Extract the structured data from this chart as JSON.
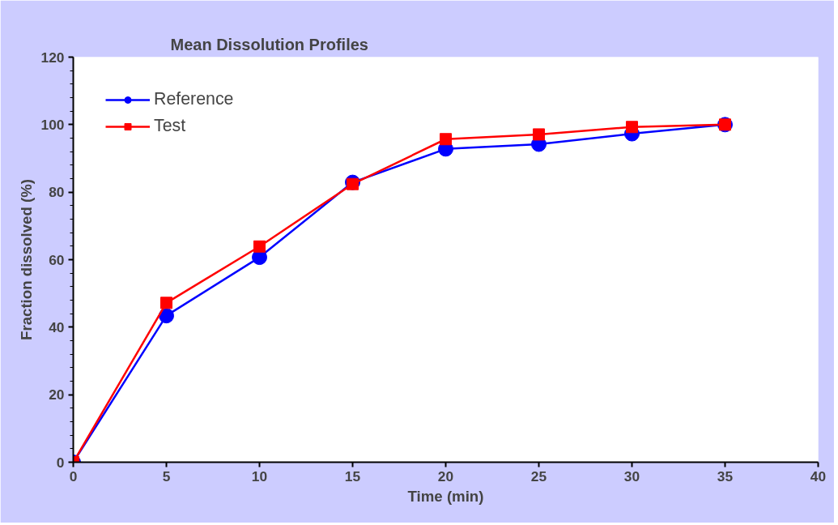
{
  "chart_data": {
    "type": "line",
    "title": "Mean Dissolution Profiles",
    "xlabel": "Time (min)",
    "ylabel": "Fraction dissolved (%)",
    "x": [
      0,
      5,
      10,
      15,
      20,
      25,
      30,
      35
    ],
    "series": [
      {
        "name": "Reference",
        "color": "#0000ff",
        "marker": "circle",
        "values": [
          0,
          43.4,
          60.7,
          82.9,
          92.8,
          94.2,
          97.3,
          100
        ]
      },
      {
        "name": "Test",
        "color": "#ff0000",
        "marker": "square",
        "values": [
          0,
          47.2,
          63.9,
          82.4,
          95.7,
          97.1,
          99.3,
          100
        ]
      }
    ],
    "xlim": [
      0,
      40
    ],
    "xticks": [
      0,
      5,
      10,
      15,
      20,
      25,
      30,
      35,
      40
    ],
    "ylim": [
      0,
      120
    ],
    "yticks": [
      0,
      20,
      40,
      60,
      80,
      100,
      120
    ],
    "grid": false,
    "legend": "top left",
    "line_style": "solid"
  }
}
